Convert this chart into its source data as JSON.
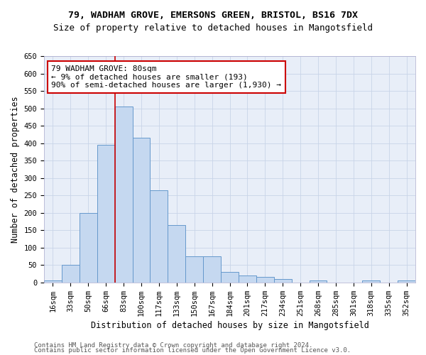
{
  "title_line1": "79, WADHAM GROVE, EMERSONS GREEN, BRISTOL, BS16 7DX",
  "title_line2": "Size of property relative to detached houses in Mangotsfield",
  "xlabel": "Distribution of detached houses by size in Mangotsfield",
  "ylabel": "Number of detached properties",
  "categories": [
    "16sqm",
    "33sqm",
    "50sqm",
    "66sqm",
    "83sqm",
    "100sqm",
    "117sqm",
    "133sqm",
    "150sqm",
    "167sqm",
    "184sqm",
    "201sqm",
    "217sqm",
    "234sqm",
    "251sqm",
    "268sqm",
    "285sqm",
    "301sqm",
    "318sqm",
    "335sqm",
    "352sqm"
  ],
  "values": [
    5,
    50,
    200,
    395,
    505,
    415,
    265,
    165,
    75,
    75,
    30,
    20,
    15,
    10,
    0,
    5,
    0,
    0,
    5,
    0,
    5
  ],
  "bar_color": "#c5d8f0",
  "bar_edge_color": "#6699cc",
  "vline_color": "#cc0000",
  "annotation_text": "79 WADHAM GROVE: 80sqm\n← 9% of detached houses are smaller (193)\n90% of semi-detached houses are larger (1,930) →",
  "annotation_box_color": "white",
  "annotation_box_edge_color": "#cc0000",
  "ylim": [
    0,
    650
  ],
  "yticks": [
    0,
    50,
    100,
    150,
    200,
    250,
    300,
    350,
    400,
    450,
    500,
    550,
    600,
    650
  ],
  "grid_color": "#c8d4e8",
  "background_color": "#e8eef8",
  "footer_line1": "Contains HM Land Registry data © Crown copyright and database right 2024.",
  "footer_line2": "Contains public sector information licensed under the Open Government Licence v3.0.",
  "title_fontsize": 9.5,
  "subtitle_fontsize": 9,
  "axis_label_fontsize": 8.5,
  "tick_fontsize": 7.5,
  "annotation_fontsize": 8,
  "footer_fontsize": 6.5,
  "vline_index": 4
}
